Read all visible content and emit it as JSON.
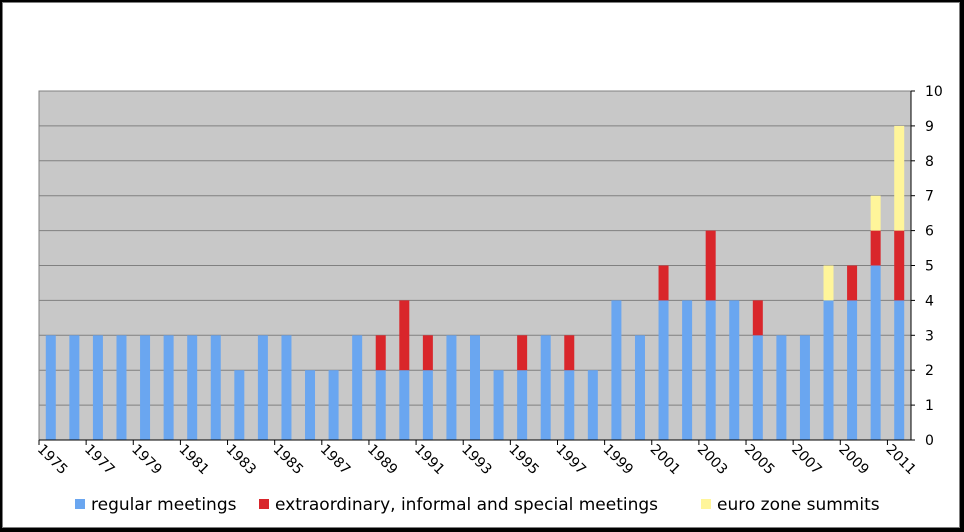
{
  "chart_data": {
    "type": "bar",
    "stacked": true,
    "title": "",
    "xlabel": "",
    "ylabel": "",
    "ylim": [
      0,
      10
    ],
    "yticks": [
      0,
      1,
      2,
      3,
      4,
      5,
      6,
      7,
      8,
      9,
      10
    ],
    "y_axis_side": "right",
    "grid": true,
    "legend_position": "bottom",
    "x_tick_labels": [
      "1975",
      "1977",
      "1979",
      "1981",
      "1983",
      "1985",
      "1987",
      "1989",
      "1991",
      "1993",
      "1995",
      "1997",
      "1999",
      "2001",
      "2003",
      "2005",
      "2007",
      "2009",
      "2011"
    ],
    "categories": [
      "1975",
      "1976",
      "1977",
      "1978",
      "1979",
      "1980",
      "1981",
      "1982",
      "1983",
      "1984",
      "1985",
      "1986",
      "1987",
      "1988",
      "1989",
      "1990",
      "1991",
      "1992",
      "1993",
      "1994",
      "1995",
      "1996",
      "1997",
      "1998",
      "1999",
      "2000",
      "2001",
      "2002",
      "2003",
      "2004",
      "2005",
      "2006",
      "2007",
      "2008",
      "2009",
      "2010",
      "2011"
    ],
    "series": [
      {
        "name": "regular meetings",
        "color": "#6aa6f0",
        "values": [
          3,
          3,
          3,
          3,
          3,
          3,
          3,
          3,
          2,
          3,
          3,
          2,
          2,
          3,
          2,
          2,
          2,
          3,
          3,
          2,
          2,
          3,
          2,
          2,
          4,
          3,
          4,
          4,
          4,
          4,
          3,
          3,
          3,
          4,
          4,
          5,
          4
        ]
      },
      {
        "name": "extraordinary, informal and special meetings",
        "color": "#d9262b",
        "values": [
          0,
          0,
          0,
          0,
          0,
          0,
          0,
          0,
          0,
          0,
          0,
          0,
          0,
          0,
          1,
          2,
          1,
          0,
          0,
          0,
          1,
          0,
          1,
          0,
          0,
          0,
          1,
          0,
          2,
          0,
          1,
          0,
          0,
          0,
          1,
          1,
          2
        ]
      },
      {
        "name": "euro zone summits",
        "color": "#fff59a",
        "values": [
          0,
          0,
          0,
          0,
          0,
          0,
          0,
          0,
          0,
          0,
          0,
          0,
          0,
          0,
          0,
          0,
          0,
          0,
          0,
          0,
          0,
          0,
          0,
          0,
          0,
          0,
          0,
          0,
          0,
          0,
          0,
          0,
          0,
          1,
          0,
          1,
          3
        ]
      }
    ]
  }
}
